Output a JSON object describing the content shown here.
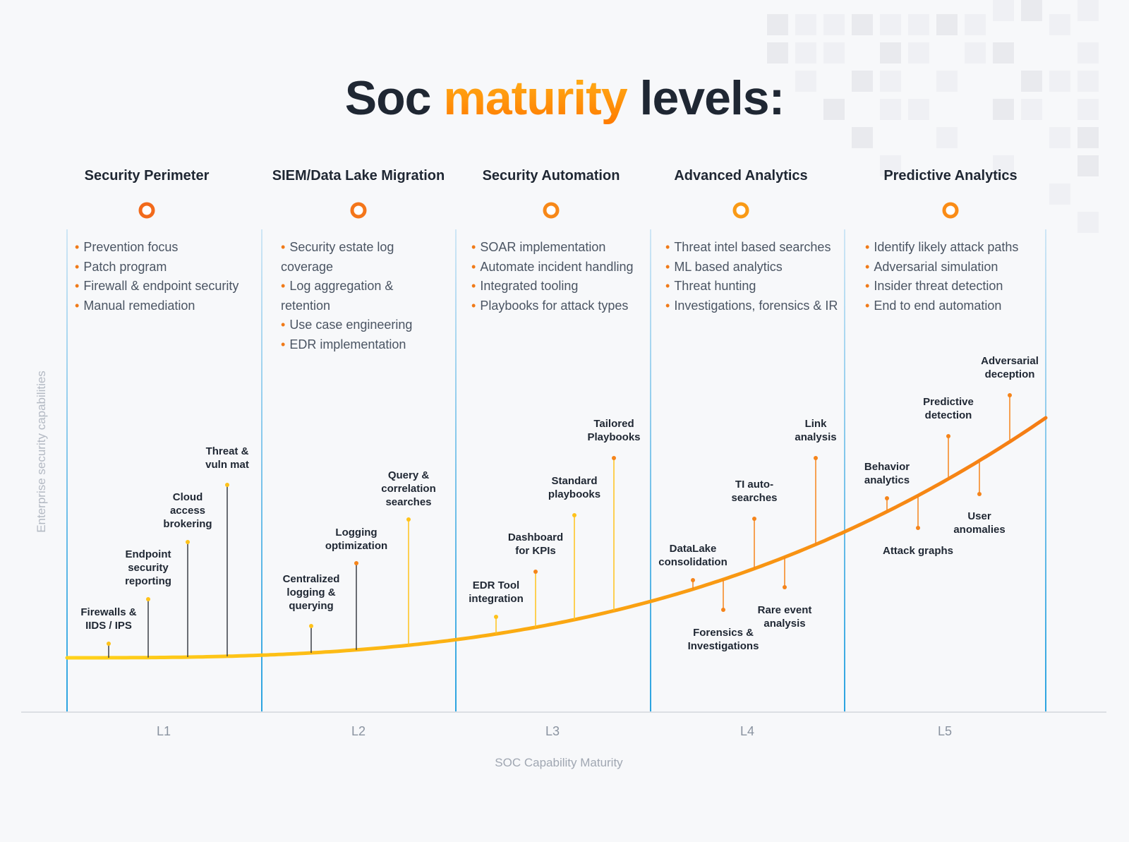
{
  "title": {
    "prefix": "Soc",
    "highlight": "maturity",
    "suffix": "levels:"
  },
  "stages": [
    {
      "heading": "Security Perimeter",
      "level": "L1",
      "bullets": [
        "Prevention focus",
        "Patch program",
        "Firewall & endpoint security",
        "Manual remediation"
      ],
      "capabilities": [
        "Firewalls & IIDS / IPS",
        "Endpoint security reporting",
        "Cloud access brokering",
        "Threat & vuln mat"
      ]
    },
    {
      "heading": "SIEM/Data Lake Migration",
      "level": "L2",
      "bullets": [
        "Security estate log coverage",
        "Log aggregation & retention",
        "Use case engineering",
        "EDR implementation"
      ],
      "capabilities": [
        "Centralized logging & querying",
        "Logging optimization",
        "Query & correlation searches"
      ]
    },
    {
      "heading": "Security Automation",
      "level": "L3",
      "bullets": [
        "SOAR implementation",
        "Automate incident handling",
        "Integrated tooling",
        "Playbooks for attack types"
      ],
      "capabilities": [
        "EDR Tool integration",
        "Dashboard for KPIs",
        "Standard playbooks",
        "Tailored Playbooks"
      ]
    },
    {
      "heading": "Advanced Analytics",
      "level": "L4",
      "bullets": [
        "Threat intel based searches",
        "ML based analytics",
        "Threat hunting",
        "Investigations, forensics & IR"
      ],
      "capabilities": [
        "DataLake consolidation",
        "Forensics & Investigations",
        "TI auto-searches",
        "Rare event analysis",
        "Link analysis"
      ]
    },
    {
      "heading": "Predictive Analytics",
      "level": "L5",
      "bullets": [
        "Identify likely attack paths",
        "Adversarial simulation",
        "Insider threat detection",
        "End to end automation"
      ],
      "capabilities": [
        "Behavior analytics",
        "Attack graphs",
        "Predictive detection",
        "User anomalies",
        "Adversarial deception"
      ]
    }
  ],
  "y_axis_label": "Enterprise security capabilities",
  "x_axis_label": "SOC Capability Maturity"
}
